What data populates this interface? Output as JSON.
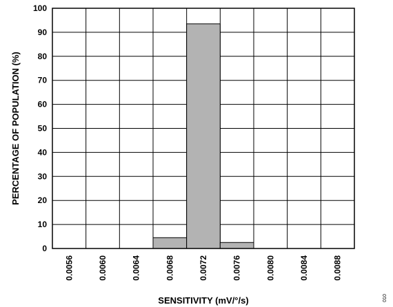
{
  "chart_data": {
    "type": "bar",
    "categories": [
      "0.0056",
      "0.0060",
      "0.0064",
      "0.0068",
      "0.0072",
      "0.0076",
      "0.0080",
      "0.0084",
      "0.0088"
    ],
    "values": [
      0,
      0,
      0,
      4.5,
      93.5,
      2.5,
      0,
      0,
      0
    ],
    "xlabel": "SENSITIVITY (mV/°/s)",
    "ylabel": "PERCENTAGE OF POPULATION (%)",
    "ylim": [
      0,
      100
    ],
    "yticks": [
      0,
      10,
      20,
      30,
      40,
      50,
      60,
      70,
      80,
      90,
      100
    ],
    "grid": true,
    "bar_color": "#b3b3b3",
    "figure_id": "010"
  }
}
